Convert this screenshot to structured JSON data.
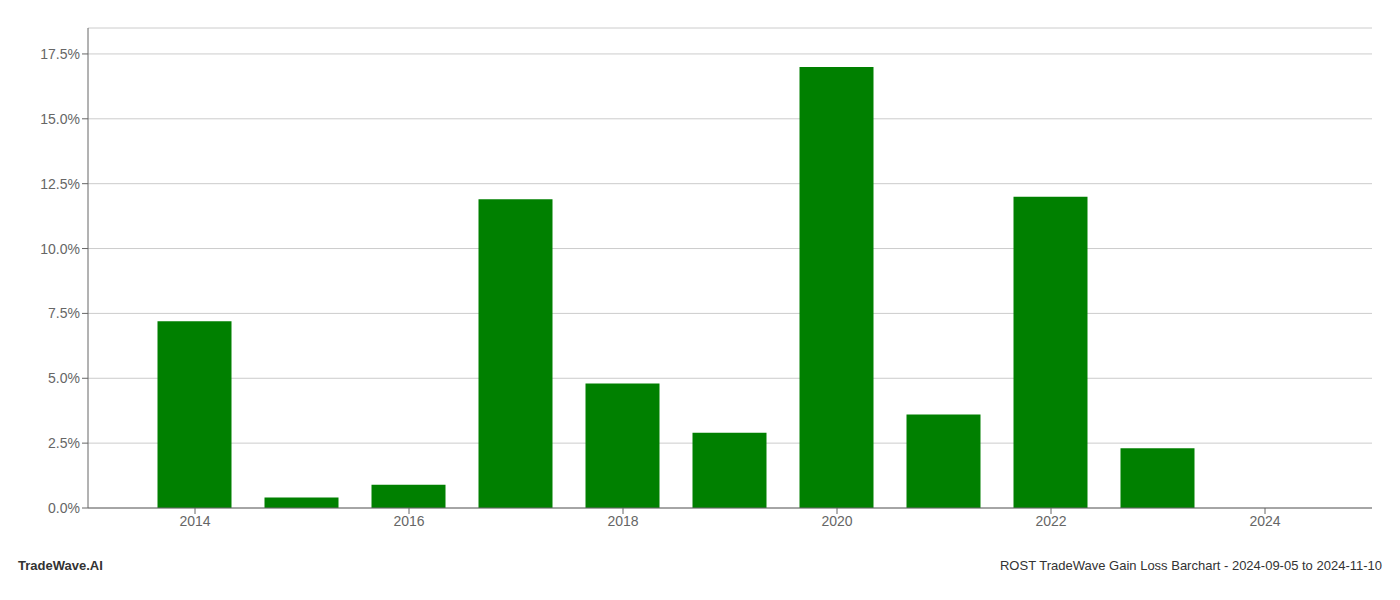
{
  "chart_data": {
    "type": "bar",
    "x": [
      2014,
      2015,
      2016,
      2017,
      2018,
      2019,
      2020,
      2021,
      2022,
      2023,
      2024
    ],
    "values": [
      0.072,
      0.004,
      0.009,
      0.119,
      0.048,
      0.029,
      0.17,
      0.036,
      0.12,
      0.023,
      0.0
    ],
    "color": "#008000",
    "xlim": [
      2013.0,
      2025.0
    ],
    "xticks": [
      2014,
      2016,
      2018,
      2020,
      2022,
      2024
    ],
    "ylim": [
      0,
      0.185
    ],
    "yticks": [
      {
        "value": 0.0,
        "label": "0.0%"
      },
      {
        "value": 0.025,
        "label": "2.5%"
      },
      {
        "value": 0.05,
        "label": "5.0%"
      },
      {
        "value": 0.075,
        "label": "7.5%"
      },
      {
        "value": 0.1,
        "label": "10.0%"
      },
      {
        "value": 0.125,
        "label": "12.5%"
      },
      {
        "value": 0.15,
        "label": "15.0%"
      },
      {
        "value": 0.175,
        "label": "17.5%"
      }
    ],
    "grid": "y",
    "annotations": [
      "TradeWave.AI",
      "ROST TradeWave Gain Loss Barchart - 2024-09-05 to 2024-11-10"
    ]
  }
}
